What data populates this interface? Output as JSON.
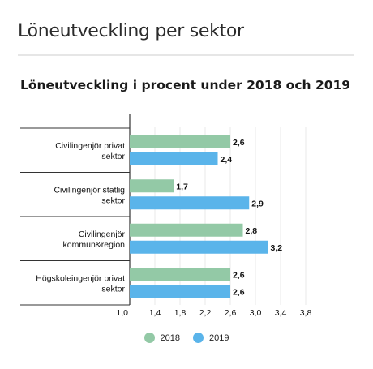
{
  "header": {
    "title": "Löneutveckling per sektor"
  },
  "chart_data": {
    "type": "bar",
    "orientation": "horizontal",
    "title": "Löneutveckling i procent under 2018 och 2019",
    "categories": [
      "Civilingenjör privat sektor",
      "Civilingenjör statlig sektor",
      "Civilingenjör kommun&region",
      "Högskoleingenjör privat sektor"
    ],
    "series": [
      {
        "name": "2018",
        "color": "#93c9a6",
        "values": [
          2.6,
          1.7,
          2.8,
          2.6
        ],
        "labels": [
          "2,6",
          "1,7",
          "2,8",
          "2,6"
        ]
      },
      {
        "name": "2019",
        "color": "#5ab4ea",
        "values": [
          2.4,
          2.9,
          3.2,
          2.6
        ],
        "labels": [
          "2,4",
          "2,9",
          "3,2",
          "2,6"
        ]
      }
    ],
    "xlim": [
      1.0,
      4.2
    ],
    "ticks": [
      1.0,
      1.4,
      1.8,
      2.2,
      2.6,
      3.0,
      3.4,
      3.8
    ],
    "tick_labels": [
      "1,0",
      "1,4",
      "1,8",
      "2,2",
      "2,6",
      "3,0",
      "3,4",
      "3,8"
    ],
    "grid": true,
    "legend_position": "bottom"
  }
}
